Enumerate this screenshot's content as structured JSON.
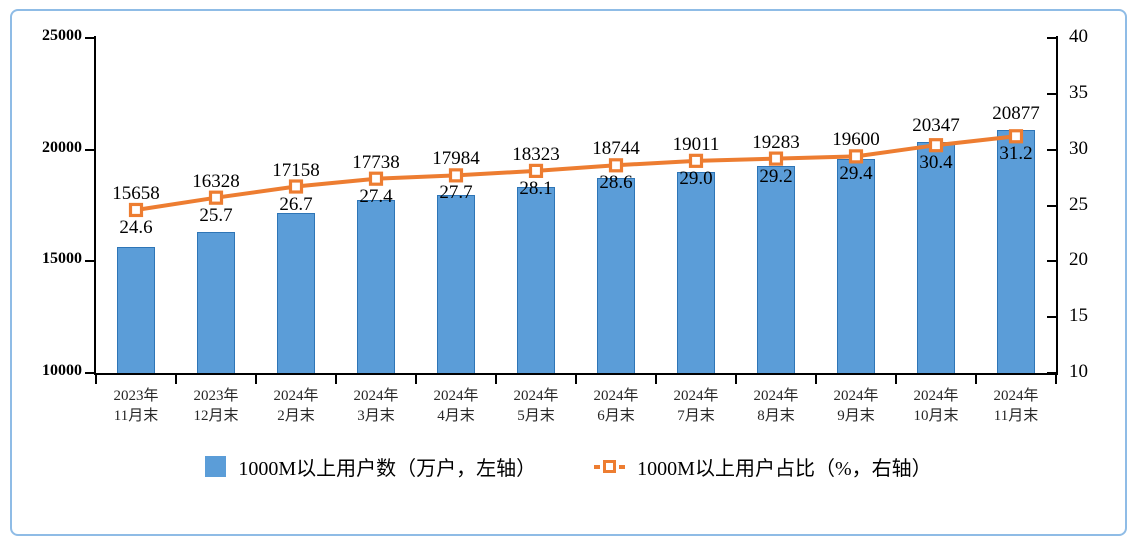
{
  "chart_data": {
    "type": "combo",
    "categories": [
      "2023年\n11月末",
      "2023年\n12月末",
      "2024年\n2月末",
      "2024年\n3月末",
      "2024年\n4月末",
      "2024年\n5月末",
      "2024年\n6月末",
      "2024年\n7月末",
      "2024年\n8月末",
      "2024年\n9月末",
      "2024年\n10月末",
      "2024年\n11月末"
    ],
    "series": [
      {
        "name": "1000M以上用户数（万户，左轴）",
        "type": "bar",
        "axis": "left",
        "values": [
          15658,
          16328,
          17158,
          17738,
          17984,
          18323,
          18744,
          19011,
          19283,
          19600,
          20347,
          20877
        ],
        "labels": [
          "15658",
          "16328",
          "17158",
          "17738",
          "17984",
          "18323",
          "18744",
          "19011",
          "19283",
          "19600",
          "20347",
          "20877"
        ],
        "color": "#5B9DD8",
        "border_color": "#2E75B6"
      },
      {
        "name": "1000M以上用户占比（%，右轴）",
        "type": "line",
        "axis": "right",
        "values": [
          24.6,
          25.7,
          26.7,
          27.4,
          27.7,
          28.1,
          28.6,
          29.0,
          29.2,
          29.4,
          30.4,
          31.2
        ],
        "labels": [
          "24.6",
          "25.7",
          "26.7",
          "27.4",
          "27.7",
          "28.1",
          "28.6",
          "29.0",
          "29.2",
          "29.4",
          "30.4",
          "31.2"
        ],
        "color": "#ED7D31",
        "marker": "square-hollow"
      }
    ],
    "left_axis": {
      "min": 10000,
      "max": 25000,
      "step": 5000,
      "tick_labels": [
        "10000",
        "15000",
        "20000",
        "25000"
      ]
    },
    "right_axis": {
      "min": 10,
      "max": 40,
      "step": 5,
      "tick_labels": [
        "10",
        "15",
        "20",
        "25",
        "30",
        "35",
        "40"
      ]
    },
    "grid": false,
    "title": "",
    "legend_position": "bottom",
    "frame_border_color": "#8FBCE6",
    "axis_color": "#000000"
  }
}
